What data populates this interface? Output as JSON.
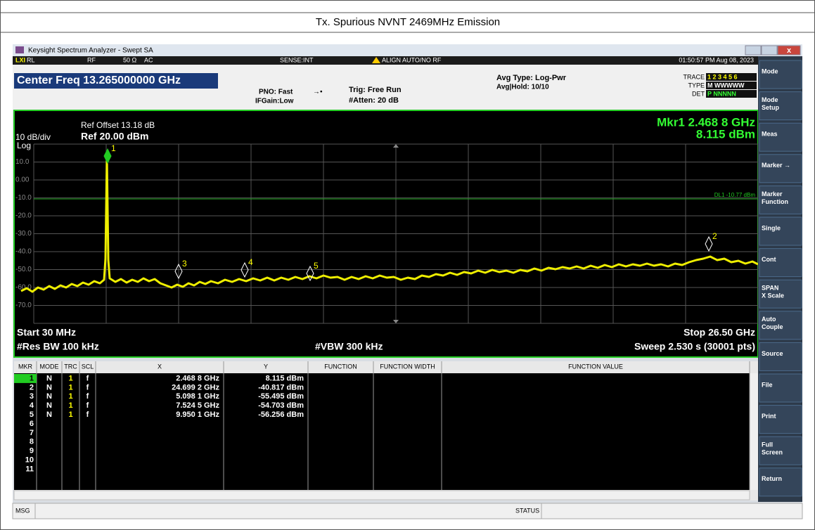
{
  "page_title": "Tx. Spurious NVNT 2469MHz Emission",
  "window_title": "Keysight Spectrum Analyzer - Swept SA",
  "status_row": {
    "rl": "RL",
    "rf": "RF",
    "impedance": "50 Ω",
    "coupling": "AC",
    "sense": "SENSE:INT",
    "align": "ALIGN AUTO/NO RF",
    "datetime": "01:50:57 PM Aug 08, 2023"
  },
  "settings": {
    "center_freq": "Center Freq 13.265000000 GHz",
    "pno": "PNO: Fast",
    "ifgain": "IFGain:Low",
    "trig": "Trig: Free Run",
    "atten": "#Atten: 20 dB",
    "avg_type": "Avg Type: Log-Pwr",
    "avg_hold": "Avg|Hold: 10/10",
    "trace_label": "TRACE",
    "trace_value": "1 2 3 4 5 6",
    "type_label": "TYPE",
    "type_value": "M WWWWW",
    "det_label": "DET",
    "det_value": "P NNNNN"
  },
  "display": {
    "ref_offset": "Ref Offset 13.18 dB",
    "scale": "10 dB/div",
    "ref_level": "Ref 20.00 dBm",
    "log": "Log",
    "marker_freq": "Mkr1 2.468 8 GHz",
    "marker_level": "8.115 dBm",
    "y_labels": [
      "10.0",
      "0.00",
      "-10.0",
      "-20.0",
      "-30.0",
      "-40.0",
      "-50.0",
      "-60.0",
      "-70.0"
    ],
    "display_line": "DL1 -10.77 dBm",
    "markers": [
      "1",
      "2",
      "3",
      "4",
      "5"
    ],
    "start": "Start 30 MHz",
    "stop": "Stop 26.50 GHz",
    "rbw": "#Res BW 100 kHz",
    "vbw": "#VBW 300 kHz",
    "sweep": "Sweep  2.530 s (30001 pts)"
  },
  "table": {
    "headers": [
      "MKR",
      "MODE",
      "TRC",
      "SCL",
      "X",
      "Y",
      "FUNCTION",
      "FUNCTION WIDTH",
      "FUNCTION VALUE"
    ],
    "rows": [
      [
        "1",
        "N",
        "1",
        "f",
        "2.468 8 GHz",
        "8.115 dBm"
      ],
      [
        "2",
        "N",
        "1",
        "f",
        "24.699 2 GHz",
        "-40.817 dBm"
      ],
      [
        "3",
        "N",
        "1",
        "f",
        "5.098 1 GHz",
        "-55.495 dBm"
      ],
      [
        "4",
        "N",
        "1",
        "f",
        "7.524 5 GHz",
        "-54.703 dBm"
      ],
      [
        "5",
        "N",
        "1",
        "f",
        "9.950 1 GHz",
        "-56.256 dBm"
      ],
      [
        "6"
      ],
      [
        "7"
      ],
      [
        "8"
      ],
      [
        "9"
      ],
      [
        "10"
      ],
      [
        "11"
      ]
    ]
  },
  "softkeys": [
    [
      "Mode"
    ],
    [
      "Mode",
      "Setup"
    ],
    [
      "Meas"
    ],
    [
      "Marker →"
    ],
    [
      "Marker",
      "Function"
    ],
    [
      "Single"
    ],
    [
      "Cont"
    ],
    [
      "SPAN",
      "X Scale"
    ],
    [
      "Auto",
      "Couple"
    ],
    [
      "Source"
    ],
    [
      "File"
    ],
    [
      "Print"
    ],
    [
      "Full",
      "Screen"
    ],
    [
      "Return"
    ]
  ],
  "footer": {
    "msg": "MSG",
    "status": "STATUS"
  }
}
